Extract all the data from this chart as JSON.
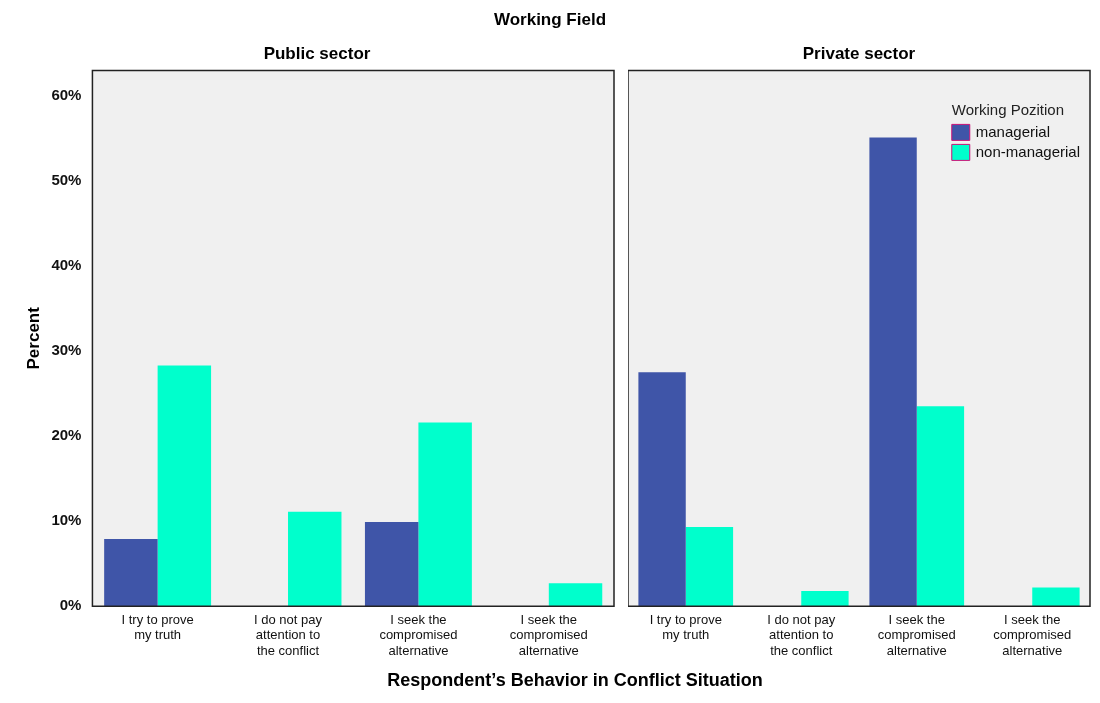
{
  "chart_data": [
    {
      "type": "bar",
      "title": "Working Field",
      "subtitle": "Public sector",
      "xlabel": "Respondent’s Behavior in Conflict Situation",
      "ylabel": "Percent",
      "categories": [
        "I try to prove my truth",
        "I do not pay attention to the conflict",
        "I seek the compromised alternative",
        "I seek the compromised alternative"
      ],
      "series": [
        {
          "color": "#3f55a8",
          "values": [
            7.9,
            0,
            9.9,
            0
          ]
        },
        {
          "color": "#00ffcc",
          "values": [
            28.3,
            11.1,
            21.6,
            2.7
          ]
        }
      ],
      "ylim": [
        0,
        63
      ],
      "yticks": [
        {
          "value": 0,
          "label": "0%"
        },
        {
          "value": 10,
          "label": "10%"
        },
        {
          "value": 20,
          "label": "20%"
        },
        {
          "value": 30,
          "label": "30%"
        },
        {
          "value": 40,
          "label": "40%"
        },
        {
          "value": 50,
          "label": "50%"
        },
        {
          "value": 60,
          "label": "60%"
        }
      ],
      "grid": false,
      "legend": false
    },
    {
      "type": "bar",
      "subtitle": "Private sector",
      "legend_title": "Working Pozition",
      "categories": [
        "I try to prove my truth",
        "I do not pay attention to the conflict",
        "I seek the compromised alternative",
        "I seek the compromised alternative"
      ],
      "series": [
        {
          "name": "managerial",
          "color": "#3f55a8",
          "values": [
            27.5,
            null,
            55.1,
            null
          ]
        },
        {
          "name": "non-managerial",
          "color": "#00ffcc",
          "values": [
            9.3,
            1.8,
            23.5,
            2.2
          ]
        }
      ],
      "ylim": [
        0,
        63
      ],
      "tick_labels": "x",
      "grid": false,
      "legend": "top right"
    }
  ]
}
